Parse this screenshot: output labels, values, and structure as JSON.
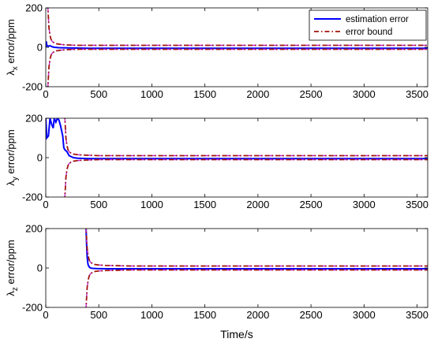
{
  "figure": {
    "xlabel": "Time/s"
  },
  "colors": {
    "estimation_error": "#0000ff",
    "error_bound": "#a0150d",
    "error_bound_dash": "#c12bd6",
    "axis": "#000000",
    "background": "#ffffff"
  },
  "chart_data": [
    {
      "type": "line",
      "ylabel_symbol": "λ",
      "ylabel_sub": "x",
      "ylabel_rest": " error/ppm",
      "xlim": [
        0,
        3600
      ],
      "ylim": [
        -200,
        200
      ],
      "xticks": [
        0,
        500,
        1000,
        1500,
        2000,
        2500,
        3000,
        3500
      ],
      "yticks": [
        -200,
        0,
        200
      ],
      "legend": {
        "placement": "top-right",
        "entries": [
          "estimation error",
          "error bound"
        ]
      },
      "series": [
        {
          "name": "estimation error",
          "style": "solid",
          "x": [
            0,
            5,
            10,
            20,
            40,
            60,
            80,
            120,
            200,
            400,
            1000,
            2000,
            3000,
            3600
          ],
          "y": [
            0,
            30,
            10,
            5,
            8,
            3,
            0,
            -2,
            -3,
            -5,
            -5,
            -5,
            -5,
            -5
          ]
        },
        {
          "name": "error bound",
          "style": "dashdot",
          "x": [
            20,
            25,
            30,
            40,
            50,
            60,
            80,
            100,
            150,
            200,
            300,
            500,
            1000,
            2000,
            3000,
            3600
          ],
          "y": [
            200,
            150,
            100,
            60,
            40,
            30,
            22,
            18,
            14,
            12,
            10,
            10,
            10,
            10,
            10,
            10
          ]
        },
        {
          "name": "error bound",
          "style": "dashdot",
          "x": [
            20,
            25,
            30,
            40,
            50,
            60,
            80,
            100,
            150,
            200,
            300,
            500,
            1000,
            2000,
            3000,
            3600
          ],
          "y": [
            -200,
            -150,
            -100,
            -60,
            -40,
            -30,
            -22,
            -18,
            -14,
            -12,
            -10,
            -10,
            -10,
            -10,
            -10,
            -10
          ]
        }
      ]
    },
    {
      "type": "line",
      "ylabel_symbol": "λ",
      "ylabel_sub": "y",
      "ylabel_rest": " error/ppm",
      "xlim": [
        0,
        3600
      ],
      "ylim": [
        -200,
        200
      ],
      "xticks": [
        0,
        500,
        1000,
        1500,
        2000,
        2500,
        3000,
        3500
      ],
      "yticks": [
        -200,
        0,
        200
      ],
      "series": [
        {
          "name": "estimation error",
          "style": "solid",
          "x": [
            0,
            10,
            25,
            40,
            55,
            70,
            80,
            95,
            110,
            125,
            140,
            160,
            170,
            180,
            190,
            200,
            220,
            260,
            300,
            400,
            1000,
            2000,
            3000,
            3600
          ],
          "y": [
            200,
            100,
            110,
            200,
            170,
            150,
            200,
            180,
            200,
            190,
            160,
            110,
            50,
            40,
            35,
            30,
            10,
            0,
            -3,
            -5,
            -5,
            -5,
            -5,
            -5
          ]
        },
        {
          "name": "error bound",
          "style": "dashdot",
          "x": [
            180,
            185,
            190,
            200,
            210,
            220,
            240,
            260,
            300,
            350,
            400,
            500,
            1000,
            2000,
            3000,
            3600
          ],
          "y": [
            200,
            150,
            100,
            60,
            40,
            30,
            22,
            18,
            15,
            13,
            12,
            10,
            10,
            10,
            10,
            10
          ]
        },
        {
          "name": "error bound",
          "style": "dashdot",
          "x": [
            180,
            185,
            190,
            200,
            210,
            220,
            240,
            260,
            300,
            350,
            400,
            500,
            1000,
            2000,
            3000,
            3600
          ],
          "y": [
            -200,
            -150,
            -100,
            -60,
            -40,
            -30,
            -22,
            -18,
            -15,
            -13,
            -12,
            -10,
            -10,
            -10,
            -10,
            -10
          ]
        }
      ]
    },
    {
      "type": "line",
      "ylabel_symbol": "λ",
      "ylabel_sub": "z",
      "ylabel_rest": " error/ppm",
      "xlim": [
        0,
        3600
      ],
      "ylim": [
        -200,
        200
      ],
      "xticks": [
        0,
        500,
        1000,
        1500,
        2000,
        2500,
        3000,
        3500
      ],
      "yticks": [
        -200,
        0,
        200
      ],
      "series": [
        {
          "name": "estimation error",
          "style": "solid",
          "x": [
            380,
            385,
            390,
            395,
            400,
            410,
            420,
            440,
            480,
            600,
            1000,
            2000,
            3000,
            3600
          ],
          "y": [
            200,
            120,
            60,
            30,
            15,
            5,
            0,
            -2,
            -3,
            -4,
            -4,
            -4,
            -4,
            -4
          ]
        },
        {
          "name": "error bound",
          "style": "dashdot",
          "x": [
            380,
            385,
            390,
            400,
            410,
            420,
            440,
            460,
            500,
            560,
            650,
            800,
            1000,
            2000,
            3000,
            3600
          ],
          "y": [
            200,
            150,
            100,
            60,
            40,
            30,
            22,
            18,
            15,
            13,
            12,
            10,
            10,
            10,
            10,
            10
          ]
        },
        {
          "name": "error bound",
          "style": "dashdot",
          "x": [
            380,
            385,
            390,
            400,
            410,
            420,
            440,
            460,
            500,
            560,
            650,
            800,
            1000,
            2000,
            3000,
            3600
          ],
          "y": [
            -200,
            -150,
            -100,
            -60,
            -40,
            -30,
            -22,
            -18,
            -15,
            -13,
            -12,
            -10,
            -10,
            -10,
            -10,
            -10
          ]
        }
      ]
    }
  ]
}
